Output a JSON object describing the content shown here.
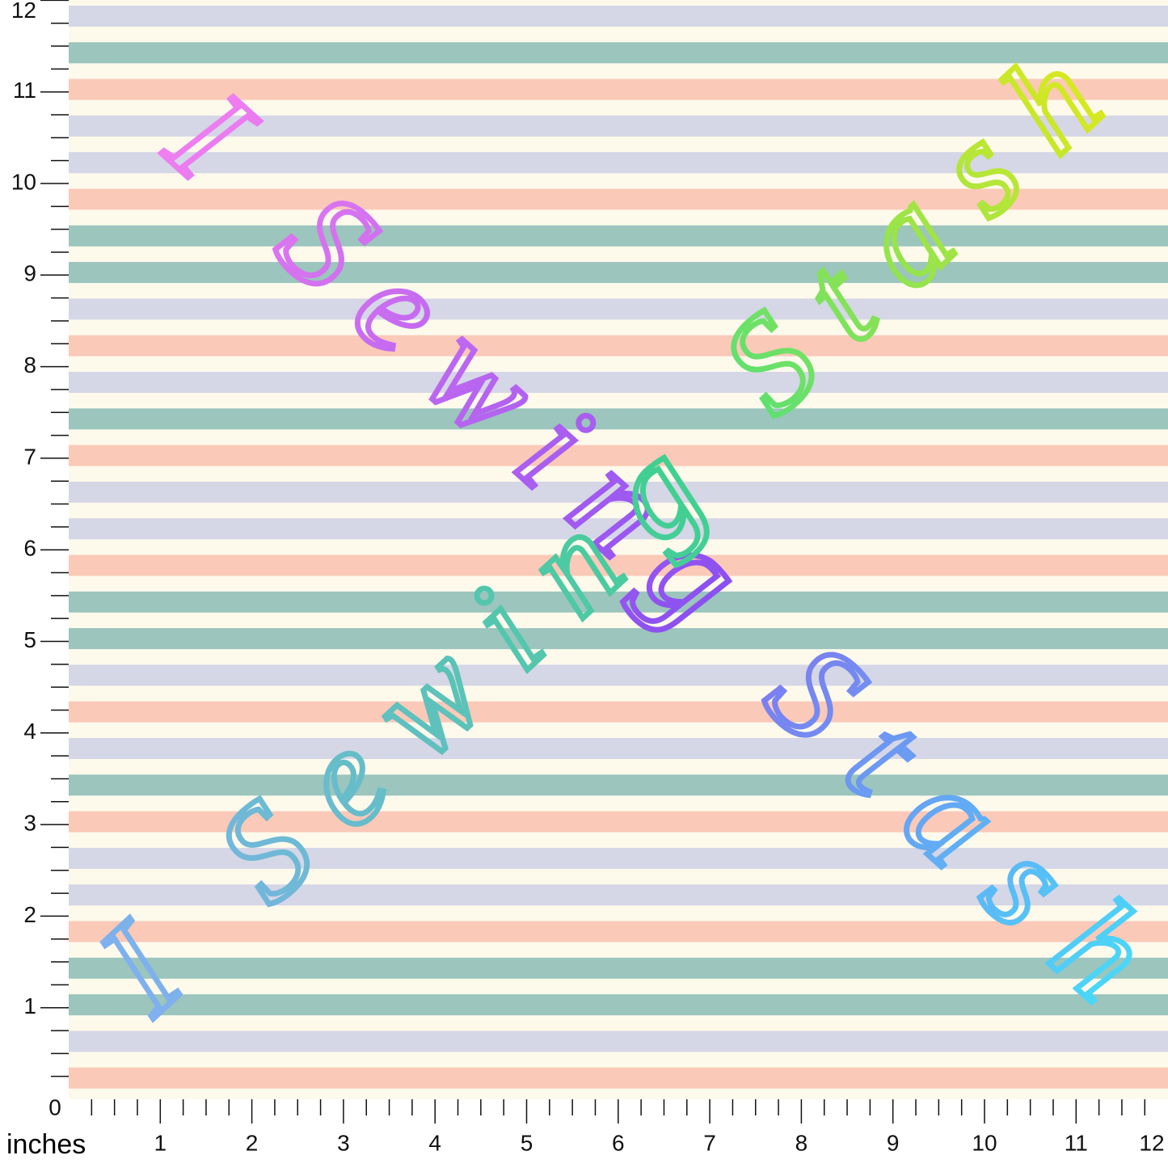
{
  "ruler": {
    "origin": "0",
    "unit": "inches",
    "left_labels": [
      "1",
      "2",
      "3",
      "4",
      "5",
      "6",
      "7",
      "8",
      "9",
      "10",
      "11",
      "12"
    ],
    "bottom_labels": [
      "1",
      "2",
      "3",
      "4",
      "5",
      "6",
      "7",
      "8",
      "9",
      "10",
      "11",
      "12"
    ]
  },
  "artwork": {
    "descending": [
      "I Sewing",
      "Stash"
    ],
    "ascending": [
      "I Sewing",
      "Stash"
    ]
  }
}
